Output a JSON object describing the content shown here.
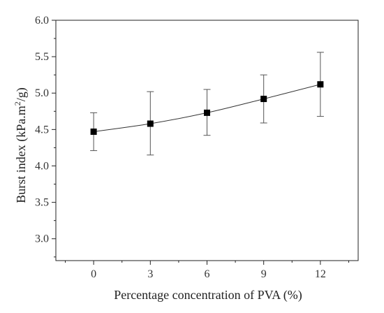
{
  "chart_data": {
    "type": "line",
    "xlabel": "Percentage concentration of PVA (%)",
    "ylabel_main": "Burst index (kPa.m",
    "ylabel_sup": "2",
    "ylabel_tail": "/g)",
    "x": [
      0,
      3,
      6,
      9,
      12
    ],
    "x_ticks": [
      "0",
      "3",
      "6",
      "9",
      "12"
    ],
    "xlim": [
      -2,
      14
    ],
    "ylim": [
      2.7,
      6.0
    ],
    "y_ticks": [
      "3.0",
      "3.5",
      "4.0",
      "4.5",
      "5.0",
      "5.5",
      "6.0"
    ],
    "series": [
      {
        "values": [
          4.47,
          4.58,
          4.73,
          4.92,
          5.12
        ],
        "error_low": [
          4.21,
          4.15,
          4.42,
          4.59,
          4.68
        ],
        "error_high": [
          4.73,
          5.02,
          5.05,
          5.25,
          5.56
        ],
        "marker": "square",
        "color": "#000000"
      }
    ],
    "grid": false,
    "legend": "none"
  }
}
